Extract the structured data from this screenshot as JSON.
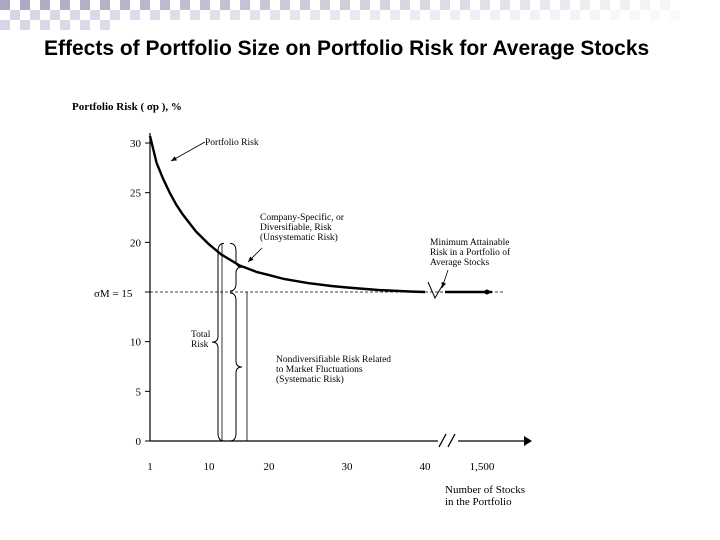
{
  "slide": {
    "title": "Effects of Portfolio Size on Portfolio Risk for Average Stocks"
  },
  "chart_data": {
    "type": "line",
    "title": "",
    "ylabel": "Portfolio Risk ( σp ), %",
    "xlabel_lines": [
      "Number of Stocks",
      "in the Portfolio"
    ],
    "ylim": [
      0,
      30
    ],
    "yticks": [
      0,
      5,
      10,
      15,
      20,
      25,
      30
    ],
    "xticks": [
      "1",
      "10",
      "20",
      "30",
      "40",
      "1,500"
    ],
    "market_risk_label": "σM = 15",
    "market_risk": 15,
    "series": [
      {
        "name": "Portfolio Risk",
        "x": [
          1,
          2,
          3,
          4,
          5,
          6,
          8,
          10,
          12,
          15,
          18,
          20,
          22,
          25,
          28,
          30,
          34,
          38,
          40,
          1500
        ],
        "y": [
          30.7,
          28.0,
          26.4,
          25.0,
          23.8,
          22.8,
          21.1,
          19.8,
          18.8,
          17.7,
          17.0,
          16.7,
          16.3,
          15.9,
          15.6,
          15.45,
          15.2,
          15.05,
          15.0,
          15.0
        ]
      }
    ],
    "annotations": {
      "portfolio_risk": [
        "Portfolio Risk"
      ],
      "company_specific": [
        "Company-Specific, or",
        "Diversifiable, Risk",
        "(Unsystematic Risk)"
      ],
      "minimum_attainable": [
        "Minimum Attainable",
        "Risk in a Portfolio of",
        "Average Stocks"
      ],
      "total_risk": [
        "Total",
        "Risk"
      ],
      "nondiversifiable": [
        "Nondiversifiable Risk Related",
        "to Market Fluctuations",
        "(Systematic Risk)"
      ]
    },
    "grid": false,
    "legend": "none"
  }
}
